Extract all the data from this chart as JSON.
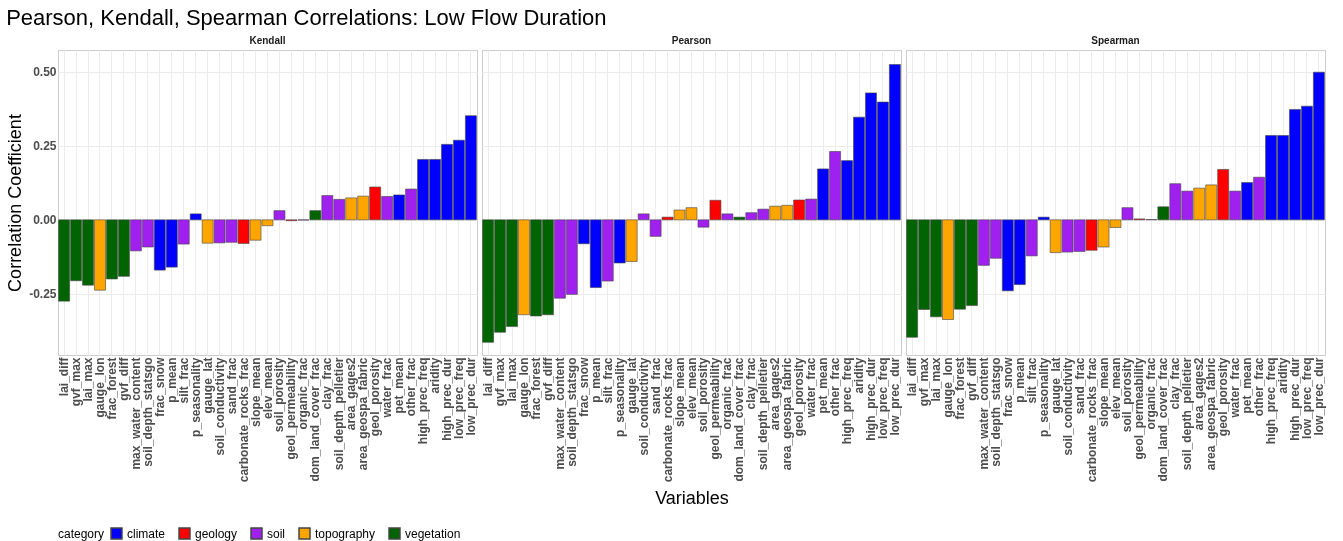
{
  "chart_data": [
    {
      "type": "bar",
      "title": "Kendall",
      "annotations": [
        "Pearson, Kendall, Spearman Correlations: Low Flow Duration"
      ],
      "ylabel": "Correlation Coefficient",
      "legend": "bottom",
      "legend_title": "category",
      "grid": true,
      "ylim": [
        -0.457,
        0.574
      ],
      "yticks": [
        {
          "value": -0.25,
          "label": "-0.25"
        },
        {
          "value": 0,
          "label": "0.00"
        },
        {
          "value": 0.25,
          "label": "0.25"
        },
        {
          "value": 0.5,
          "label": "0.50"
        }
      ],
      "categories": [
        "lai_diff",
        "gvf_max",
        "lai_max",
        "gauge_lon",
        "frac_forest",
        "gvf_diff",
        "max_water_content",
        "soil_depth_statsgo",
        "frac_snow",
        "p_mean",
        "silt_frac",
        "p_seasonality",
        "gauge_lat",
        "soil_conductivity",
        "sand_frac",
        "carbonate_rocks_frac",
        "slope_mean",
        "elev_mean",
        "soil_porosity",
        "geol_permeability",
        "organic_frac",
        "dom_land_cover_frac",
        "clay_frac",
        "soil_depth_pelletier",
        "area_gages2",
        "area_geospa_fabric",
        "geol_porosity",
        "water_frac",
        "pet_mean",
        "other_frac",
        "high_prec_freq",
        "aridity",
        "high_prec_dur",
        "low_prec_freq",
        "low_prec_dur"
      ],
      "series": [
        {
          "name": "climate",
          "color": "#0000ff",
          "values": [
            null,
            null,
            null,
            null,
            null,
            null,
            null,
            null,
            -0.17,
            -0.16,
            null,
            0.02,
            null,
            null,
            null,
            null,
            null,
            null,
            null,
            null,
            null,
            null,
            null,
            null,
            null,
            null,
            null,
            null,
            0.084,
            null,
            0.204,
            0.204,
            0.255,
            0.269,
            0.352
          ]
        },
        {
          "name": "geology",
          "color": "#ff0000",
          "values": [
            null,
            null,
            null,
            null,
            null,
            null,
            null,
            null,
            null,
            null,
            null,
            null,
            null,
            null,
            null,
            -0.08,
            null,
            null,
            null,
            -0.003,
            null,
            null,
            null,
            null,
            null,
            null,
            0.111,
            null,
            null,
            null,
            null,
            null,
            null,
            null,
            null
          ]
        },
        {
          "name": "soil",
          "color": "#a020f0",
          "values": [
            null,
            null,
            null,
            null,
            null,
            null,
            -0.105,
            -0.092,
            null,
            null,
            -0.082,
            null,
            null,
            -0.078,
            -0.076,
            null,
            null,
            null,
            0.031,
            null,
            -0.001,
            null,
            0.082,
            0.069,
            null,
            null,
            null,
            0.079,
            null,
            0.104,
            null,
            null,
            null,
            null,
            null
          ]
        },
        {
          "name": "topography",
          "color": "#ffa500",
          "values": [
            null,
            null,
            null,
            -0.238,
            null,
            null,
            null,
            null,
            null,
            null,
            null,
            null,
            -0.079,
            null,
            null,
            null,
            -0.069,
            -0.02,
            null,
            null,
            null,
            null,
            null,
            null,
            0.074,
            0.08,
            null,
            null,
            null,
            null,
            null,
            null,
            null,
            null,
            null
          ]
        },
        {
          "name": "vegetation",
          "color": "#006400",
          "values": [
            -0.275,
            -0.206,
            -0.221,
            null,
            -0.2,
            -0.191,
            null,
            null,
            null,
            null,
            null,
            null,
            null,
            null,
            null,
            null,
            null,
            null,
            null,
            null,
            null,
            0.031,
            null,
            null,
            null,
            null,
            null,
            null,
            null,
            null,
            null,
            null,
            null,
            null,
            null
          ]
        }
      ]
    },
    {
      "type": "bar",
      "title": "Pearson",
      "xlabel": "Variables",
      "grid": true,
      "tick_labels": "x",
      "ylim": [
        -0.457,
        0.574
      ],
      "yticks": [
        {
          "value": -0.25,
          "label": null
        },
        {
          "value": 0,
          "label": null
        },
        {
          "value": 0.25,
          "label": null
        },
        {
          "value": 0.5,
          "label": null
        }
      ],
      "categories": [
        "lai_diff",
        "gvf_max",
        "lai_max",
        "gauge_lon",
        "frac_forest",
        "gvf_diff",
        "max_water_content",
        "soil_depth_statsgo",
        "frac_snow",
        "p_mean",
        "silt_frac",
        "p_seasonality",
        "gauge_lat",
        "soil_conductivity",
        "sand_frac",
        "carbonate_rocks_frac",
        "slope_mean",
        "elev_mean",
        "soil_porosity",
        "geol_permeability",
        "organic_frac",
        "dom_land_cover_frac",
        "clay_frac",
        "soil_depth_pelletier",
        "area_gages2",
        "area_geospa_fabric",
        "geol_porosity",
        "water_frac",
        "pet_mean",
        "other_frac",
        "high_prec_freq",
        "aridity",
        "high_prec_dur",
        "low_prec_freq",
        "low_prec_dur"
      ],
      "series": [
        {
          "name": "climate",
          "color": "#0000ff",
          "values": [
            null,
            null,
            null,
            null,
            null,
            null,
            null,
            null,
            -0.081,
            -0.229,
            null,
            -0.146,
            null,
            null,
            null,
            null,
            null,
            null,
            null,
            null,
            null,
            null,
            null,
            null,
            null,
            null,
            null,
            null,
            0.172,
            null,
            0.2,
            0.347,
            0.429,
            0.398,
            0.525
          ]
        },
        {
          "name": "geology",
          "color": "#ff0000",
          "values": [
            null,
            null,
            null,
            null,
            null,
            null,
            null,
            null,
            null,
            null,
            null,
            null,
            null,
            null,
            null,
            0.009,
            null,
            null,
            null,
            0.066,
            null,
            null,
            null,
            null,
            null,
            null,
            0.067,
            null,
            null,
            null,
            null,
            null,
            null,
            null,
            null
          ]
        },
        {
          "name": "soil",
          "color": "#a020f0",
          "values": [
            null,
            null,
            null,
            null,
            null,
            null,
            -0.265,
            -0.252,
            null,
            null,
            -0.207,
            null,
            null,
            0.02,
            -0.056,
            null,
            null,
            null,
            -0.025,
            null,
            0.02,
            null,
            0.024,
            0.036,
            null,
            null,
            null,
            0.07,
            null,
            0.231,
            null,
            null,
            null,
            null,
            null
          ]
        },
        {
          "name": "topography",
          "color": "#ffa500",
          "values": [
            null,
            null,
            null,
            -0.321,
            null,
            null,
            null,
            null,
            null,
            null,
            null,
            null,
            -0.141,
            null,
            null,
            null,
            0.033,
            0.041,
            null,
            null,
            null,
            null,
            null,
            null,
            0.046,
            0.049,
            null,
            null,
            null,
            null,
            null,
            null,
            null,
            null,
            null
          ]
        },
        {
          "name": "vegetation",
          "color": "#006400",
          "values": [
            -0.414,
            -0.38,
            -0.361,
            null,
            -0.325,
            -0.321,
            null,
            null,
            null,
            null,
            null,
            null,
            null,
            null,
            null,
            null,
            null,
            null,
            null,
            null,
            null,
            0.009,
            null,
            null,
            null,
            null,
            null,
            null,
            null,
            null,
            null,
            null,
            null,
            null,
            null
          ]
        }
      ]
    },
    {
      "type": "bar",
      "title": "Spearman",
      "grid": true,
      "tick_labels": "x",
      "ylim": [
        -0.457,
        0.574
      ],
      "yticks": [
        {
          "value": -0.25,
          "label": null
        },
        {
          "value": 0,
          "label": null
        },
        {
          "value": 0.25,
          "label": null
        },
        {
          "value": 0.5,
          "label": null
        }
      ],
      "categories": [
        "lai_diff",
        "gvf_max",
        "lai_max",
        "gauge_lon",
        "frac_forest",
        "gvf_diff",
        "max_water_content",
        "soil_depth_statsgo",
        "frac_snow",
        "p_mean",
        "silt_frac",
        "p_seasonality",
        "gauge_lat",
        "soil_conductivity",
        "sand_frac",
        "carbonate_rocks_frac",
        "slope_mean",
        "elev_mean",
        "soil_porosity",
        "geol_permeability",
        "organic_frac",
        "dom_land_cover_frac",
        "clay_frac",
        "soil_depth_pelletier",
        "area_gages2",
        "area_geospa_fabric",
        "geol_porosity",
        "water_frac",
        "pet_mean",
        "other_frac",
        "high_prec_freq",
        "aridity",
        "high_prec_dur",
        "low_prec_freq",
        "low_prec_dur"
      ],
      "series": [
        {
          "name": "climate",
          "color": "#0000ff",
          "values": [
            null,
            null,
            null,
            null,
            null,
            null,
            null,
            null,
            -0.24,
            -0.219,
            null,
            0.009,
            null,
            null,
            null,
            null,
            null,
            null,
            null,
            null,
            null,
            null,
            null,
            null,
            null,
            null,
            null,
            null,
            0.126,
            null,
            0.285,
            0.285,
            0.373,
            0.384,
            0.499
          ]
        },
        {
          "name": "geology",
          "color": "#ff0000",
          "values": [
            null,
            null,
            null,
            null,
            null,
            null,
            null,
            null,
            null,
            null,
            null,
            null,
            null,
            null,
            null,
            -0.103,
            null,
            null,
            null,
            0.003,
            null,
            null,
            null,
            null,
            null,
            null,
            0.17,
            null,
            null,
            null,
            null,
            null,
            null,
            null,
            null
          ]
        },
        {
          "name": "soil",
          "color": "#a020f0",
          "values": [
            null,
            null,
            null,
            null,
            null,
            null,
            -0.154,
            -0.13,
            null,
            null,
            -0.122,
            null,
            null,
            -0.109,
            -0.107,
            null,
            null,
            null,
            0.041,
            null,
            0.001,
            null,
            0.122,
            0.097,
            null,
            null,
            null,
            0.097,
            null,
            0.144,
            null,
            null,
            null,
            null,
            null
          ]
        },
        {
          "name": "topography",
          "color": "#ffa500",
          "values": [
            null,
            null,
            null,
            -0.337,
            null,
            null,
            null,
            null,
            null,
            null,
            null,
            null,
            -0.111,
            null,
            null,
            null,
            -0.092,
            -0.026,
            null,
            null,
            null,
            null,
            null,
            null,
            0.107,
            0.118,
            null,
            null,
            null,
            null,
            null,
            null,
            null,
            null,
            null
          ]
        },
        {
          "name": "vegetation",
          "color": "#006400",
          "values": [
            -0.397,
            -0.303,
            -0.328,
            null,
            -0.302,
            -0.29,
            null,
            null,
            null,
            null,
            null,
            null,
            null,
            null,
            null,
            null,
            null,
            null,
            null,
            null,
            null,
            0.044,
            null,
            null,
            null,
            null,
            null,
            null,
            null,
            null,
            null,
            null,
            null,
            null,
            null
          ]
        }
      ]
    }
  ]
}
